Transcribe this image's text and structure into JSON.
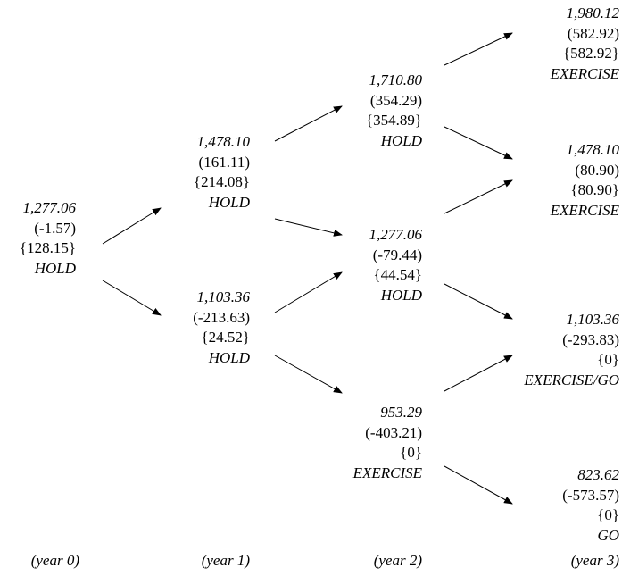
{
  "nodes": [
    {
      "id": "y0-n0",
      "value": "1,277.06",
      "second": "(-1.57)",
      "third": "{128.15}",
      "action": "HOLD"
    },
    {
      "id": "y1-n0",
      "value": "1,478.10",
      "second": "(161.11)",
      "third": "{214.08}",
      "action": "HOLD"
    },
    {
      "id": "y1-n1",
      "value": "1,103.36",
      "second": "(-213.63)",
      "third": "{24.52}",
      "action": "HOLD"
    },
    {
      "id": "y2-n0",
      "value": "1,710.80",
      "second": "(354.29)",
      "third": "{354.89}",
      "action": "HOLD"
    },
    {
      "id": "y2-n1",
      "value": "1,277.06",
      "second": "(-79.44)",
      "third": "{44.54}",
      "action": "HOLD"
    },
    {
      "id": "y2-n2",
      "value": "953.29",
      "second": "(-403.21)",
      "third": "{0}",
      "action": "EXERCISE"
    },
    {
      "id": "y3-n0",
      "value": "1,980.12",
      "second": "(582.92)",
      "third": "{582.92}",
      "action": "EXERCISE"
    },
    {
      "id": "y3-n1",
      "value": "1,478.10",
      "second": "(80.90)",
      "third": "{80.90}",
      "action": "EXERCISE"
    },
    {
      "id": "y3-n2",
      "value": "1,103.36",
      "second": "(-293.83)",
      "third": "{0}",
      "action": "EXERCISE/GO"
    },
    {
      "id": "y3-n3",
      "value": "823.62",
      "second": "(-573.57)",
      "third": "{0}",
      "action": "GO"
    }
  ],
  "years": [
    "(year 0)",
    "(year 1)",
    "(year 2)",
    "(year 3)"
  ]
}
